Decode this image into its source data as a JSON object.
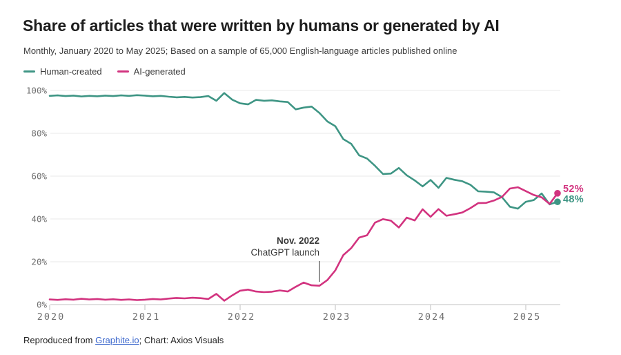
{
  "title": "Share of articles that were written by humans or generated by AI",
  "subtitle": "Monthly, January 2020 to May 2025; Based on a sample of 65,000 English-language articles published online",
  "legend": [
    {
      "label": "Human-created",
      "color": "#3E9584"
    },
    {
      "label": "AI-generated",
      "color": "#D2337F"
    }
  ],
  "annotation": {
    "line1": "Nov. 2022",
    "line2": "ChatGPT launch",
    "month_index": 34
  },
  "end_labels": {
    "ai": "52%",
    "human": "48%"
  },
  "footer": {
    "prefix": "Reproduced from ",
    "link": "Graphite.io",
    "suffix": "; Chart: Axios Visuals"
  },
  "colors": {
    "human": "#3E9584",
    "ai": "#D2337F",
    "grid": "#e9e9e9",
    "axis": "#cfcfcf",
    "tick": "#bfbfbf",
    "tick_text": "#707070",
    "annotation_line": "#4d4d4d"
  },
  "chart_data": {
    "type": "line",
    "x_start": "2020-01",
    "x_end": "2025-05",
    "x_frequency": "monthly",
    "x_tick_labels": [
      "2020",
      "2021",
      "2022",
      "2023",
      "2024",
      "2025"
    ],
    "y_tick_labels": [
      "0%",
      "20%",
      "40%",
      "60%",
      "80%",
      "100%"
    ],
    "y_tick_values": [
      0,
      20,
      40,
      60,
      80,
      100
    ],
    "ylim": [
      0,
      100
    ],
    "grid": true,
    "legend_position": "top-left",
    "series": [
      {
        "name": "Human-created",
        "color": "#3E9584",
        "end_value": 48,
        "values": [
          97.5,
          97.7,
          97.4,
          97.6,
          97.2,
          97.5,
          97.3,
          97.6,
          97.4,
          97.7,
          97.5,
          97.8,
          97.6,
          97.3,
          97.5,
          97.1,
          96.8,
          97.0,
          96.7,
          96.9,
          97.4,
          95.2,
          98.8,
          95.7,
          94.0,
          93.5,
          95.6,
          95.2,
          95.4,
          94.9,
          94.6,
          91.2,
          92.0,
          92.5,
          89.5,
          85.5,
          83.3,
          77.3,
          75.1,
          69.7,
          68.2,
          64.8,
          61.0,
          61.2,
          63.8,
          60.4,
          58.0,
          55.2,
          58.2,
          54.5,
          59.2,
          58.3,
          57.6,
          56.0,
          52.9,
          52.7,
          52.4,
          50.2,
          45.7,
          44.8,
          48.0,
          48.8,
          51.9,
          46.8,
          48.0
        ]
      },
      {
        "name": "AI-generated",
        "color": "#D2337F",
        "end_value": 52,
        "values": [
          2.4,
          2.2,
          2.5,
          2.3,
          2.7,
          2.4,
          2.6,
          2.3,
          2.5,
          2.2,
          2.4,
          2.1,
          2.3,
          2.6,
          2.4,
          2.8,
          3.1,
          2.9,
          3.2,
          3.0,
          2.6,
          5.0,
          1.8,
          4.3,
          6.5,
          7.0,
          6.1,
          5.8,
          6.0,
          6.6,
          6.1,
          8.3,
          10.3,
          9.0,
          8.8,
          11.5,
          16.0,
          23.1,
          26.4,
          31.3,
          32.4,
          38.3,
          39.9,
          39.2,
          36.0,
          40.6,
          39.3,
          44.5,
          41.0,
          44.6,
          41.5,
          42.2,
          43.0,
          45.0,
          47.4,
          47.5,
          48.6,
          50.3,
          54.2,
          54.8,
          53.0,
          51.2,
          50.1,
          47.0,
          52.0
        ]
      }
    ],
    "title": "Share of articles that were written by humans or generated by AI",
    "xlabel": "",
    "ylabel": ""
  }
}
